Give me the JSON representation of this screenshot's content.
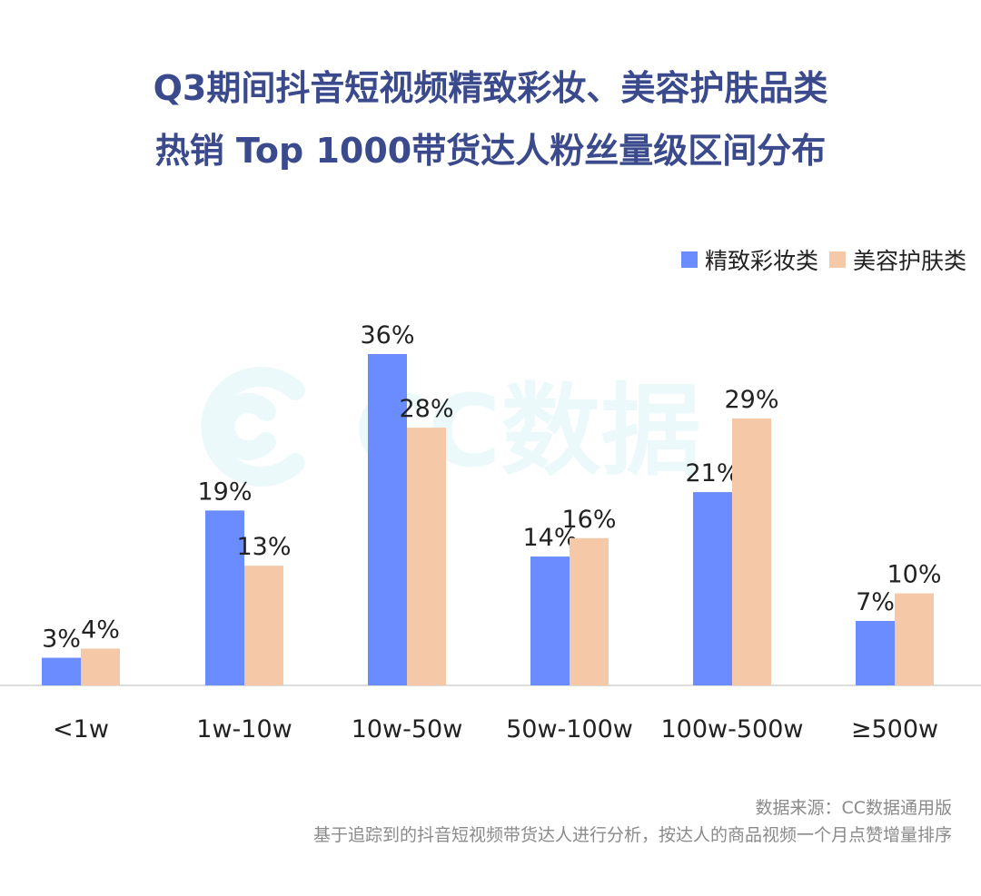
{
  "title_line1": "Q3期间抖音短视频精致彩妆、美容护肤品类",
  "title_line2": "热销 Top 1000带货达人粉丝量级区间分布",
  "watermark": "CC数据",
  "source_line1": "数据来源：CC数据通用版",
  "source_line2": "基于追踪到的抖音短视频带货达人进行分析，按达人的商品视频一个月点赞增量排序",
  "colors": {
    "title": "#3a4a8c",
    "series1": "#6b8cff",
    "series2": "#f5c9a7",
    "axis": "#dddddd"
  },
  "chart_data": {
    "type": "bar",
    "categories": [
      "<1w",
      "1w-10w",
      "10w-50w",
      "50w-100w",
      "100w-500w",
      "≥500w"
    ],
    "series": [
      {
        "name": "精致彩妆类",
        "values": [
          3,
          19,
          36,
          14,
          21,
          7
        ],
        "labels": [
          "3%",
          "19%",
          "36%",
          "14%",
          "21%",
          "7%"
        ]
      },
      {
        "name": "美容护肤类",
        "values": [
          4,
          13,
          28,
          16,
          29,
          10
        ],
        "labels": [
          "4%",
          "13%",
          "28%",
          "16%",
          "29%",
          "10%"
        ]
      }
    ],
    "ylim": [
      0,
      36
    ],
    "legend_position": "top-right",
    "grid": false
  }
}
